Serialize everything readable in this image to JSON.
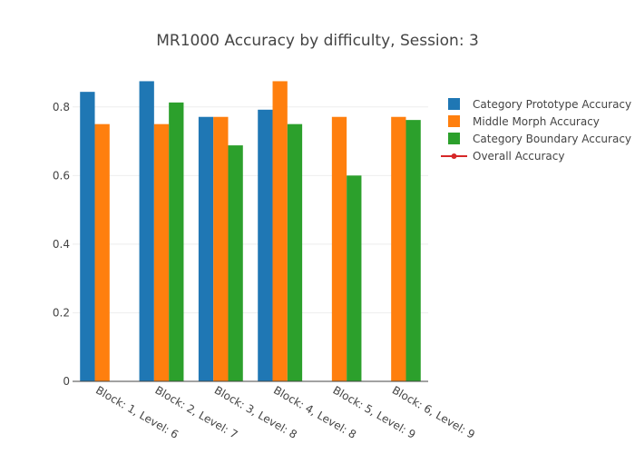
{
  "chart_data": {
    "type": "bar",
    "title": "MR1000 Accuracy by difficulty, Session: 3",
    "xlabel": "",
    "ylabel": "",
    "categories": [
      "Block: 1, Level: 6",
      "Block: 2, Level: 7",
      "Block: 3, Level: 8",
      "Block: 4, Level: 8",
      "Block: 5, Level: 9",
      "Block: 6, Level: 9"
    ],
    "series": [
      {
        "name": "Category Prototype Accuracy",
        "color": "#1f77b4",
        "values": [
          0.844,
          0.875,
          0.771,
          0.792,
          null,
          null
        ]
      },
      {
        "name": "Middle Morph Accuracy",
        "color": "#ff7f0e",
        "values": [
          0.75,
          0.75,
          0.771,
          0.875,
          0.771,
          0.771
        ]
      },
      {
        "name": "Category Boundary Accuracy",
        "color": "#2ca02c",
        "values": [
          null,
          0.813,
          0.688,
          0.75,
          0.6,
          0.762
        ]
      }
    ],
    "line_series": [
      {
        "name": "Overall Accuracy",
        "color": "#d62728",
        "values": []
      }
    ],
    "ylim": [
      0,
      0.9
    ],
    "yticks": [
      0,
      0.2,
      0.4,
      0.6,
      0.8
    ],
    "ytick_labels": [
      "0",
      "0.2",
      "0.4",
      "0.6",
      "0.8"
    ],
    "grid": true,
    "legend_position": "top-right"
  }
}
